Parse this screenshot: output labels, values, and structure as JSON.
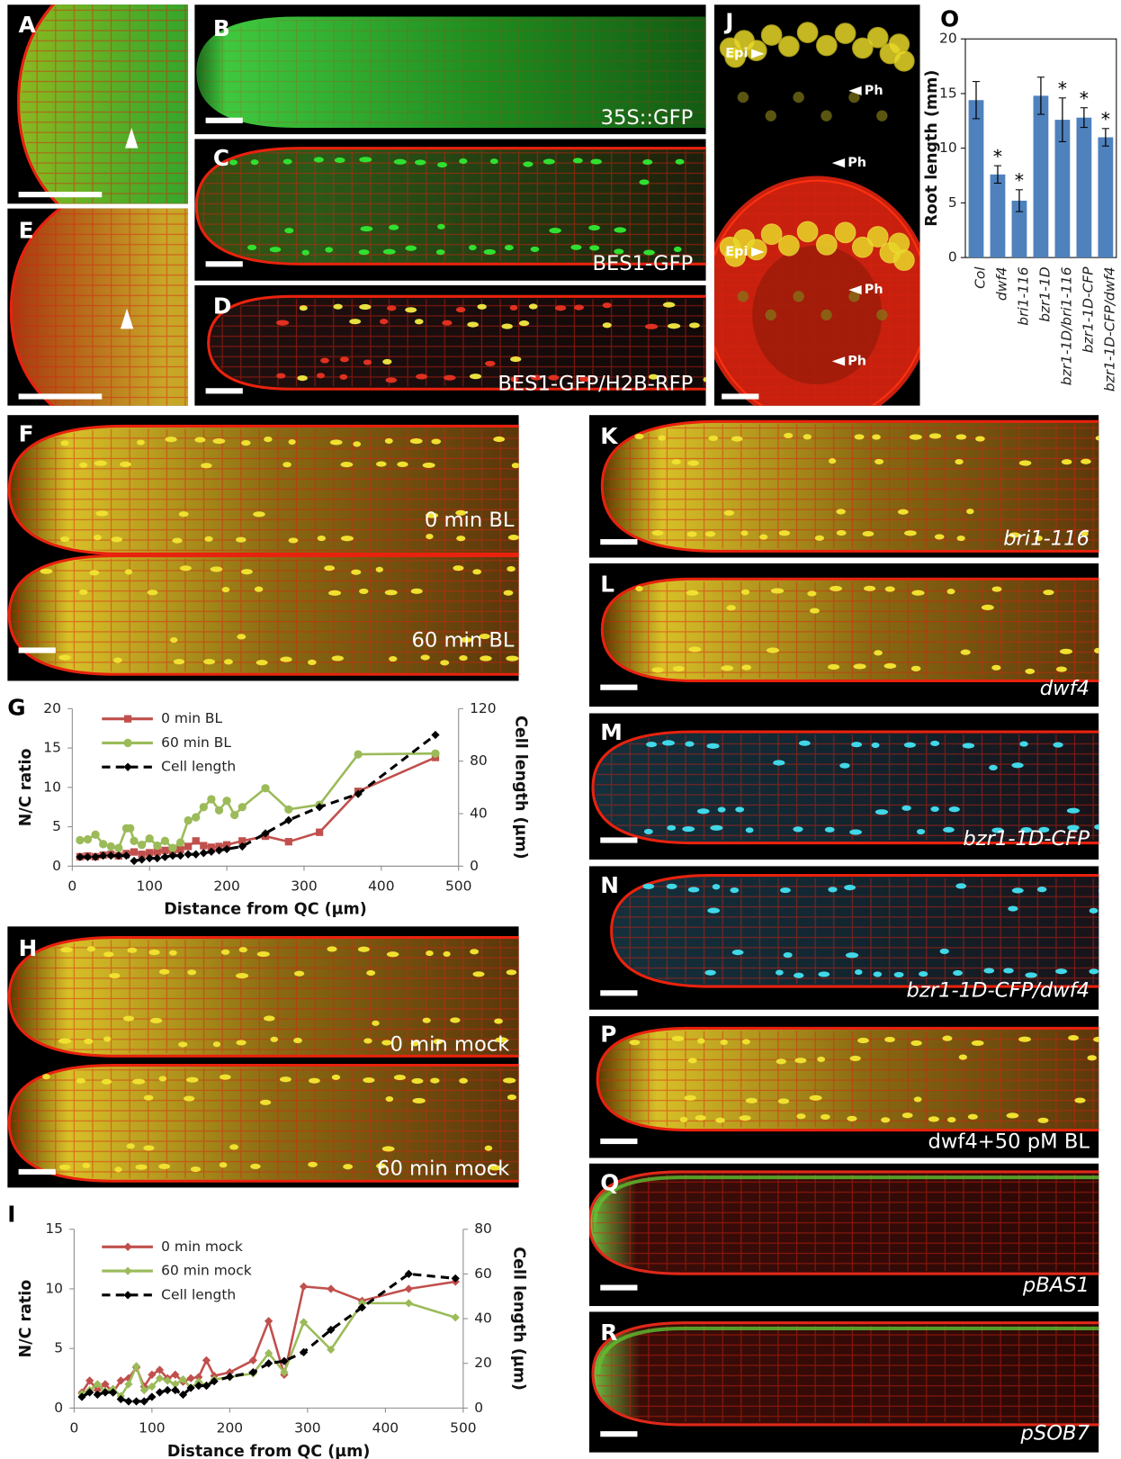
{
  "panels": [
    {
      "letter": "A"
    },
    {
      "letter": "B",
      "captions": [
        "35S::GFP"
      ]
    },
    {
      "letter": "C",
      "captions": [
        "BES1-GFP"
      ]
    },
    {
      "letter": "D",
      "captions": [
        "BES1-GFP/H2B-RFP"
      ]
    },
    {
      "letter": "E"
    },
    {
      "letter": "J",
      "labels": [
        "Epi",
        "Ph",
        "Ph",
        "Epi",
        "Ph",
        "Ph"
      ]
    },
    {
      "letter": "O"
    },
    {
      "letter": "F",
      "captions": [
        "0 min BL",
        "60 min BL"
      ]
    },
    {
      "letter": "G"
    },
    {
      "letter": "H",
      "captions": [
        "0 min mock",
        "60 min mock"
      ]
    },
    {
      "letter": "I"
    },
    {
      "letter": "K",
      "captions": [
        "bri1-116"
      ]
    },
    {
      "letter": "L",
      "captions": [
        "dwf4"
      ]
    },
    {
      "letter": "M",
      "captions": [
        "bzr1-1D-CFP"
      ]
    },
    {
      "letter": "N",
      "captions": [
        "bzr1-1D-CFP/dwf4"
      ]
    },
    {
      "letter": "P",
      "captions": [
        "dwf4+50 pM BL"
      ]
    },
    {
      "letter": "Q",
      "captions": [
        "pBAS1"
      ]
    },
    {
      "letter": "R",
      "captions": [
        "pSOB7"
      ]
    }
  ],
  "chart_data": [
    {
      "type": "line",
      "xlabel": "Distance from QC (µm)",
      "ylabel": "N/C ratio",
      "y2label": "Cell length (µm)",
      "xlim": [
        0,
        500
      ],
      "xticks": [
        0,
        100,
        200,
        300,
        400,
        500
      ],
      "ylim": [
        0,
        20
      ],
      "yticks": [
        0,
        5,
        10,
        15,
        20
      ],
      "y2lim": [
        0,
        120
      ],
      "y2ticks": [
        0,
        40,
        80,
        120
      ],
      "series": [
        {
          "name": "0 min BL",
          "color": "#c0504d",
          "marker": "square",
          "line_style": "solid",
          "x": [
            10,
            20,
            30,
            40,
            50,
            60,
            70,
            80,
            90,
            100,
            110,
            120,
            130,
            140,
            150,
            160,
            170,
            180,
            190,
            200,
            220,
            250,
            280,
            320,
            370,
            470
          ],
          "values": [
            1.2,
            1.3,
            1.2,
            1.4,
            1.5,
            1.3,
            1.6,
            1.8,
            1.5,
            1.7,
            1.8,
            2,
            1.9,
            2.1,
            2.5,
            3.2,
            2.6,
            2.4,
            2.5,
            2.7,
            3.2,
            3.8,
            3.1,
            4.3,
            9.5,
            13.8
          ]
        },
        {
          "name": "60 min BL",
          "color": "#9bbb59",
          "marker": "circle",
          "line_style": "solid",
          "x": [
            10,
            20,
            30,
            40,
            50,
            60,
            70,
            75,
            80,
            90,
            100,
            110,
            120,
            130,
            140,
            150,
            160,
            170,
            180,
            190,
            200,
            210,
            220,
            250,
            280,
            320,
            370,
            470
          ],
          "values": [
            3.3,
            3.4,
            4,
            2.8,
            2.5,
            2.3,
            4.8,
            4.8,
            3.2,
            2.7,
            3.5,
            2.6,
            3.2,
            2.3,
            3,
            5.8,
            6.2,
            7.5,
            8.5,
            7.1,
            8.3,
            6.5,
            7.5,
            9.9,
            7.2,
            7.8,
            14.2,
            14.3
          ]
        },
        {
          "name": "Cell length",
          "color": "#000000",
          "marker": "diamond",
          "line_style": "dashed",
          "axis": "y2",
          "x": [
            10,
            20,
            30,
            40,
            50,
            60,
            70,
            80,
            90,
            100,
            110,
            120,
            130,
            140,
            150,
            160,
            170,
            180,
            190,
            200,
            220,
            250,
            280,
            320,
            370,
            470
          ],
          "values": [
            7,
            7,
            7,
            8,
            8,
            8,
            8,
            4,
            5,
            6,
            6,
            7,
            8,
            8,
            9,
            9,
            10,
            11,
            12,
            13,
            15,
            25,
            35,
            45,
            55,
            100
          ]
        }
      ]
    },
    {
      "type": "line",
      "xlabel": "Distance from QC (µm)",
      "ylabel": "N/C ratio",
      "y2label": "Cell length (µm)",
      "xlim": [
        0,
        500
      ],
      "xticks": [
        0,
        100,
        200,
        300,
        400,
        500
      ],
      "ylim": [
        0,
        15
      ],
      "yticks": [
        0,
        5,
        10,
        15
      ],
      "y2lim": [
        0,
        80
      ],
      "y2ticks": [
        0,
        20,
        40,
        60,
        80
      ],
      "series": [
        {
          "name": "0 min mock",
          "color": "#c0504d",
          "marker": "diamond",
          "line_style": "solid",
          "x": [
            10,
            20,
            30,
            40,
            50,
            60,
            70,
            80,
            90,
            100,
            110,
            120,
            130,
            140,
            150,
            160,
            170,
            180,
            200,
            230,
            250,
            270,
            295,
            330,
            370,
            430,
            490
          ],
          "values": [
            1.3,
            2.3,
            1.5,
            2.0,
            1.3,
            2.3,
            2.5,
            3.4,
            1.8,
            2.8,
            3.2,
            2.5,
            2.8,
            2.2,
            2.5,
            2.6,
            4.0,
            2.7,
            3.0,
            4.0,
            7.3,
            2.8,
            10.2,
            10.0,
            9.0,
            10.0,
            10.6
          ]
        },
        {
          "name": "60 min mock",
          "color": "#9bbb59",
          "marker": "diamond",
          "line_style": "solid",
          "x": [
            10,
            20,
            30,
            40,
            50,
            60,
            70,
            80,
            90,
            100,
            110,
            120,
            130,
            140,
            150,
            160,
            170,
            180,
            200,
            230,
            250,
            270,
            295,
            330,
            370,
            430,
            490
          ],
          "values": [
            1.2,
            1.5,
            2.0,
            1.4,
            1.6,
            1.0,
            2.0,
            3.5,
            1.5,
            1.8,
            2.5,
            2.3,
            2.0,
            2.4,
            1.7,
            2.2,
            1.9,
            2.4,
            2.6,
            2.9,
            4.6,
            3.0,
            7.2,
            4.9,
            8.8,
            8.8,
            7.6
          ]
        },
        {
          "name": "Cell length",
          "color": "#000000",
          "marker": "diamond",
          "line_style": "dashed",
          "axis": "y2",
          "x": [
            10,
            20,
            30,
            40,
            50,
            60,
            70,
            80,
            90,
            100,
            110,
            120,
            130,
            140,
            150,
            160,
            170,
            180,
            200,
            230,
            250,
            270,
            295,
            330,
            370,
            430,
            490
          ],
          "values": [
            5,
            7,
            6,
            7,
            7,
            4,
            3,
            3,
            3,
            5,
            7,
            8,
            8,
            6,
            9,
            10,
            10,
            12,
            14,
            16,
            20,
            21,
            25,
            35,
            45,
            60,
            58
          ]
        }
      ]
    },
    {
      "type": "bar",
      "ylabel": "Root length (mm)",
      "color": "#4f81bd",
      "categories": [
        "Col",
        "dwf4",
        "bri1-116",
        "bzr1-1D",
        "bzr1-1D/bri1-116",
        "bzr1-1D-CFP",
        "bzr1-1D-CFP/dwf4"
      ],
      "values": [
        14.4,
        7.6,
        5.2,
        14.8,
        12.6,
        12.8,
        11.0
      ],
      "errors": [
        1.7,
        0.8,
        1.0,
        1.7,
        2.0,
        0.9,
        0.8
      ],
      "value_annotations": [
        null,
        "*",
        "*",
        null,
        "*",
        "*",
        "*"
      ],
      "ylim": [
        0,
        20
      ],
      "yticks": [
        0,
        5,
        10,
        15,
        20
      ]
    }
  ]
}
